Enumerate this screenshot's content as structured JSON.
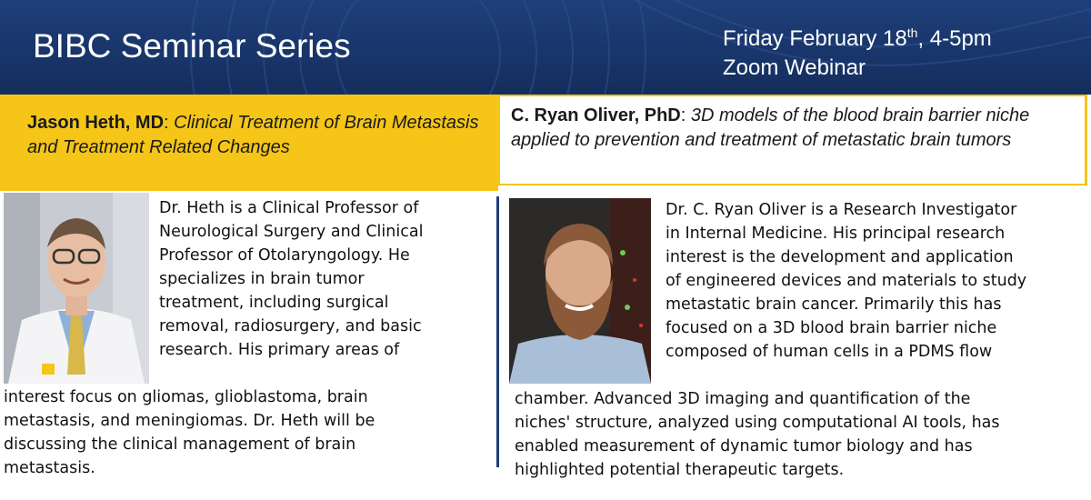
{
  "header": {
    "title": "BIBC Seminar Series",
    "date_prefix": "Friday February 18",
    "date_suffix_sup": "th",
    "date_rest": ", 4-5pm",
    "location": "Zoom Webinar"
  },
  "speakers": [
    {
      "name": "Jason Heth, MD",
      "talk_title": "Clinical Treatment of Brain Metastasis and Treatment Related Changes",
      "bio_lines_narrow": [
        "Dr. Heth is a Clinical Professor of",
        "Neurological Surgery and Clinical",
        "Professor of Otolaryngology. He",
        "specializes in brain tumor",
        "treatment, including surgical",
        "removal, radiosurgery, and basic",
        "research. His primary areas of"
      ],
      "bio_lines_wide": [
        "interest focus on gliomas, glioblastoma, brain",
        "metastasis, and meningiomas. Dr. Heth will be",
        "discussing the clinical management of brain",
        "metastasis."
      ],
      "photo": "headshot-photo"
    },
    {
      "name": "C. Ryan Oliver, PhD",
      "talk_title": "3D models of the blood brain barrier niche applied to prevention and treatment of metastatic brain tumors",
      "bio_lines_narrow": [
        "Dr. C. Ryan Oliver is a Research Investigator",
        "in Internal Medicine. His principal research",
        "interest is the development and application",
        "of engineered devices and materials to study",
        "metastatic brain cancer. Primarily this has",
        "focused on a 3D blood brain barrier niche",
        "composed of human cells in a PDMS flow"
      ],
      "bio_lines_wide": [
        "chamber. Advanced 3D imaging and quantification of the",
        "niches' structure, analyzed using computational AI tools, has",
        "enabled measurement of dynamic tumor biology and has",
        "highlighted potential therapeutic targets."
      ],
      "photo": "headshot-photo"
    }
  ],
  "colors": {
    "header_blue": "#1f3f7a",
    "maize": "#f5c518"
  }
}
